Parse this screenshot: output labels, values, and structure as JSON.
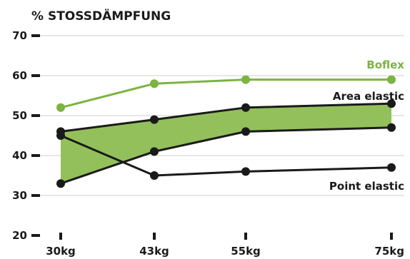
{
  "chart_data": {
    "type": "line",
    "title": "",
    "ylabel": "% STOSSDÄMPFUNG",
    "xlabel": "",
    "categories": [
      "30kg",
      "43kg",
      "55kg",
      "75kg"
    ],
    "ylim": [
      20,
      70
    ],
    "yticks": [
      20,
      30,
      40,
      50,
      60,
      70
    ],
    "grid": true,
    "series": [
      {
        "name": "Boflex",
        "values": [
          52,
          58,
          59,
          59
        ],
        "color": "#7cb342"
      },
      {
        "name": "Area elastic",
        "values": [
          46,
          49,
          52,
          53
        ],
        "color": "#1a1a1a"
      },
      {
        "name": "",
        "values": [
          33,
          41,
          46,
          47
        ],
        "color": "#1a1a1a"
      },
      {
        "name": "Point elastic",
        "values": [
          45,
          35,
          36,
          37
        ],
        "color": "#1a1a1a"
      }
    ],
    "band": {
      "upper": "Area elastic",
      "lower_index": 2,
      "color": "#93c05a"
    },
    "colors": {
      "boflex": "#7cb342",
      "band": "#93c05a",
      "ink": "#1a1a1a",
      "grid": "#cfcfcf"
    }
  }
}
